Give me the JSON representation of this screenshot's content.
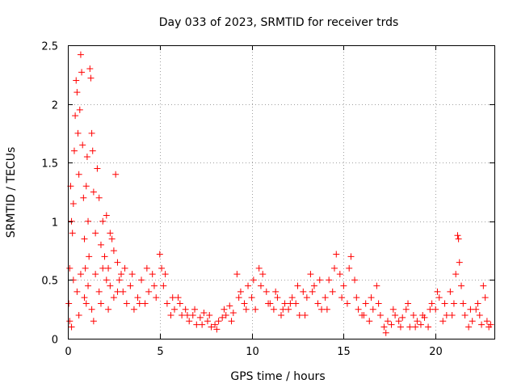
{
  "chart_data": {
    "type": "scatter",
    "title": "Day 033 of 2023, SRMTID for receiver trds",
    "xlabel": "GPS time / hours",
    "ylabel": "SRMTID / TECUs",
    "xlim": [
      0,
      23.2
    ],
    "ylim": [
      0,
      2.5
    ],
    "x_ticks": [
      0,
      5,
      10,
      15,
      20
    ],
    "x_tick_labels": [
      "0",
      "5",
      "10",
      "15",
      "20"
    ],
    "y_ticks": [
      0,
      0.5,
      1,
      1.5,
      2,
      2.5
    ],
    "y_tick_labels": [
      "0",
      "0.5",
      "1",
      "1.5",
      "2",
      "2.5"
    ],
    "grid": true,
    "marker": "plus",
    "color": "#ff0000",
    "series": [
      {
        "name": "SRMTID",
        "points": [
          [
            0.05,
            0.3
          ],
          [
            0.1,
            0.6
          ],
          [
            0.15,
            1.3
          ],
          [
            0.2,
            1.0
          ],
          [
            0.25,
            0.9
          ],
          [
            0.3,
            1.15
          ],
          [
            0.35,
            1.6
          ],
          [
            0.4,
            1.9
          ],
          [
            0.45,
            2.2
          ],
          [
            0.5,
            2.1
          ],
          [
            0.55,
            1.75
          ],
          [
            0.6,
            1.4
          ],
          [
            0.65,
            1.95
          ],
          [
            0.7,
            2.42
          ],
          [
            0.75,
            2.27
          ],
          [
            0.8,
            1.65
          ],
          [
            0.85,
            1.2
          ],
          [
            0.9,
            0.85
          ],
          [
            0.95,
            0.6
          ],
          [
            1.0,
            1.3
          ],
          [
            1.05,
            1.55
          ],
          [
            1.1,
            1.0
          ],
          [
            1.15,
            0.7
          ],
          [
            1.2,
            2.3
          ],
          [
            1.25,
            2.22
          ],
          [
            1.3,
            1.75
          ],
          [
            1.35,
            1.6
          ],
          [
            1.4,
            1.25
          ],
          [
            1.5,
            0.9
          ],
          [
            1.6,
            1.45
          ],
          [
            1.7,
            1.2
          ],
          [
            1.8,
            0.8
          ],
          [
            1.9,
            1.0
          ],
          [
            2.0,
            0.7
          ],
          [
            2.1,
            1.05
          ],
          [
            2.2,
            0.6
          ],
          [
            2.3,
            0.9
          ],
          [
            2.4,
            0.85
          ],
          [
            2.5,
            0.75
          ],
          [
            2.6,
            1.4
          ],
          [
            2.7,
            0.65
          ],
          [
            2.8,
            0.5
          ],
          [
            2.9,
            0.55
          ],
          [
            3.0,
            0.4
          ],
          [
            0.1,
            0.15
          ],
          [
            0.3,
            0.5
          ],
          [
            0.5,
            0.4
          ],
          [
            0.7,
            0.55
          ],
          [
            0.9,
            0.35
          ],
          [
            1.1,
            0.45
          ],
          [
            1.3,
            0.25
          ],
          [
            1.5,
            0.55
          ],
          [
            1.7,
            0.4
          ],
          [
            1.9,
            0.6
          ],
          [
            2.1,
            0.5
          ],
          [
            2.3,
            0.45
          ],
          [
            2.5,
            0.35
          ],
          [
            2.7,
            0.4
          ],
          [
            0.2,
            0.1
          ],
          [
            0.6,
            0.2
          ],
          [
            1.0,
            0.3
          ],
          [
            1.4,
            0.15
          ],
          [
            1.8,
            0.3
          ],
          [
            2.2,
            0.25
          ],
          [
            3.2,
            0.3
          ],
          [
            3.4,
            0.45
          ],
          [
            3.6,
            0.25
          ],
          [
            3.8,
            0.35
          ],
          [
            4.0,
            0.5
          ],
          [
            4.2,
            0.3
          ],
          [
            4.4,
            0.4
          ],
          [
            4.6,
            0.55
          ],
          [
            4.8,
            0.35
          ],
          [
            5.0,
            0.72
          ],
          [
            5.1,
            0.6
          ],
          [
            5.2,
            0.45
          ],
          [
            5.4,
            0.3
          ],
          [
            5.6,
            0.2
          ],
          [
            5.8,
            0.25
          ],
          [
            6.0,
            0.35
          ],
          [
            6.2,
            0.2
          ],
          [
            6.4,
            0.25
          ],
          [
            6.6,
            0.15
          ],
          [
            6.8,
            0.2
          ],
          [
            7.0,
            0.12
          ],
          [
            7.2,
            0.18
          ],
          [
            7.4,
            0.22
          ],
          [
            7.6,
            0.15
          ],
          [
            7.8,
            0.1
          ],
          [
            8.0,
            0.12
          ],
          [
            8.2,
            0.15
          ],
          [
            8.4,
            0.18
          ],
          [
            8.6,
            0.2
          ],
          [
            8.8,
            0.28
          ],
          [
            9.0,
            0.22
          ],
          [
            9.2,
            0.55
          ],
          [
            9.4,
            0.4
          ],
          [
            9.6,
            0.3
          ],
          [
            9.8,
            0.45
          ],
          [
            10.0,
            0.35
          ],
          [
            10.2,
            0.25
          ],
          [
            10.4,
            0.6
          ],
          [
            10.6,
            0.55
          ],
          [
            10.8,
            0.4
          ],
          [
            11.0,
            0.3
          ],
          [
            11.2,
            0.25
          ],
          [
            11.4,
            0.35
          ],
          [
            11.6,
            0.2
          ],
          [
            11.8,
            0.3
          ],
          [
            12.0,
            0.25
          ],
          [
            12.2,
            0.35
          ],
          [
            12.4,
            0.3
          ],
          [
            12.6,
            0.2
          ],
          [
            12.8,
            0.4
          ],
          [
            13.0,
            0.35
          ],
          [
            13.2,
            0.55
          ],
          [
            13.4,
            0.45
          ],
          [
            13.6,
            0.3
          ],
          [
            13.8,
            0.25
          ],
          [
            14.0,
            0.35
          ],
          [
            14.2,
            0.5
          ],
          [
            14.4,
            0.4
          ],
          [
            14.6,
            0.72
          ],
          [
            14.8,
            0.55
          ],
          [
            15.0,
            0.45
          ],
          [
            15.2,
            0.3
          ],
          [
            15.4,
            0.7
          ],
          [
            15.6,
            0.5
          ],
          [
            15.8,
            0.25
          ],
          [
            16.0,
            0.2
          ],
          [
            16.2,
            0.3
          ],
          [
            16.4,
            0.15
          ],
          [
            16.6,
            0.25
          ],
          [
            16.8,
            0.45
          ],
          [
            17.0,
            0.2
          ],
          [
            17.2,
            0.1
          ],
          [
            17.4,
            0.15
          ],
          [
            17.6,
            0.12
          ],
          [
            17.8,
            0.2
          ],
          [
            18.0,
            0.15
          ],
          [
            18.2,
            0.18
          ],
          [
            18.4,
            0.25
          ],
          [
            18.6,
            0.1
          ],
          [
            18.8,
            0.2
          ],
          [
            19.0,
            0.15
          ],
          [
            19.2,
            0.12
          ],
          [
            19.4,
            0.18
          ],
          [
            19.6,
            0.1
          ],
          [
            19.8,
            0.3
          ],
          [
            20.0,
            0.25
          ],
          [
            20.2,
            0.35
          ],
          [
            20.4,
            0.15
          ],
          [
            20.6,
            0.2
          ],
          [
            20.8,
            0.4
          ],
          [
            21.0,
            0.3
          ],
          [
            21.1,
            0.55
          ],
          [
            21.2,
            0.88
          ],
          [
            21.25,
            0.85
          ],
          [
            21.3,
            0.65
          ],
          [
            21.4,
            0.45
          ],
          [
            21.6,
            0.2
          ],
          [
            21.8,
            0.1
          ],
          [
            22.0,
            0.15
          ],
          [
            22.2,
            0.25
          ],
          [
            22.4,
            0.2
          ],
          [
            22.6,
            0.45
          ],
          [
            22.7,
            0.35
          ],
          [
            22.8,
            0.15
          ],
          [
            22.9,
            0.1
          ],
          [
            23.0,
            0.12
          ],
          [
            3.1,
            0.6
          ],
          [
            3.5,
            0.55
          ],
          [
            3.9,
            0.3
          ],
          [
            4.3,
            0.6
          ],
          [
            4.7,
            0.45
          ],
          [
            5.3,
            0.55
          ],
          [
            5.7,
            0.35
          ],
          [
            6.1,
            0.3
          ],
          [
            6.5,
            0.2
          ],
          [
            6.9,
            0.25
          ],
          [
            7.3,
            0.12
          ],
          [
            7.7,
            0.2
          ],
          [
            8.1,
            0.08
          ],
          [
            8.5,
            0.25
          ],
          [
            8.9,
            0.15
          ],
          [
            9.3,
            0.35
          ],
          [
            9.7,
            0.25
          ],
          [
            10.1,
            0.5
          ],
          [
            10.5,
            0.45
          ],
          [
            10.9,
            0.3
          ],
          [
            11.3,
            0.4
          ],
          [
            11.7,
            0.25
          ],
          [
            12.1,
            0.3
          ],
          [
            12.5,
            0.45
          ],
          [
            12.9,
            0.2
          ],
          [
            13.3,
            0.4
          ],
          [
            13.7,
            0.5
          ],
          [
            14.1,
            0.25
          ],
          [
            14.5,
            0.6
          ],
          [
            14.9,
            0.35
          ],
          [
            15.3,
            0.6
          ],
          [
            15.7,
            0.35
          ],
          [
            16.1,
            0.2
          ],
          [
            16.5,
            0.35
          ],
          [
            16.9,
            0.3
          ],
          [
            17.3,
            0.05
          ],
          [
            17.7,
            0.25
          ],
          [
            18.1,
            0.1
          ],
          [
            18.5,
            0.3
          ],
          [
            18.9,
            0.1
          ],
          [
            19.3,
            0.2
          ],
          [
            19.7,
            0.25
          ],
          [
            20.1,
            0.4
          ],
          [
            20.5,
            0.3
          ],
          [
            20.9,
            0.2
          ],
          [
            21.5,
            0.3
          ],
          [
            21.9,
            0.25
          ],
          [
            22.3,
            0.3
          ],
          [
            22.5,
            0.12
          ]
        ]
      }
    ]
  }
}
